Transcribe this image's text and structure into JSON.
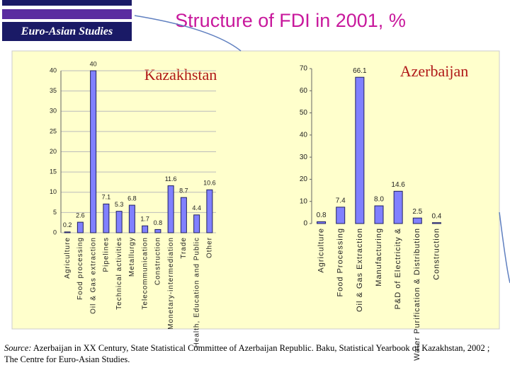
{
  "header": {
    "logo": "Euro-Asian Studies",
    "title": "Structure of FDI in 2001, %"
  },
  "chart_data": [
    {
      "type": "bar",
      "title": "Kazakhstan",
      "categories": [
        "Agriculture",
        "Food processing",
        "Oil & Gas extraction",
        "Pipelines",
        "Technical activities",
        "Metallurgy",
        "Telecommunication",
        "Construction",
        "Monetary-intermediation",
        "Trade",
        "Health, Education and Public",
        "Other"
      ],
      "values": [
        0.2,
        2.6,
        40,
        7.1,
        5.3,
        6.8,
        1.7,
        0.8,
        11.6,
        8.7,
        4.4,
        10.6
      ],
      "color": "#8080ff",
      "ylim": [
        0,
        40
      ],
      "yticks": [
        0,
        5,
        10,
        15,
        20,
        25,
        30,
        35,
        40
      ],
      "grid": true
    },
    {
      "type": "bar",
      "title": "Azerbaijan",
      "categories": [
        "Agriculture",
        "Food Processing",
        "Oil & Gas Extraction",
        "Manufacturing",
        "P&D of Electricity &",
        "Water Purification & Distribution",
        "Construction"
      ],
      "values": [
        0.8,
        7.4,
        66.1,
        8,
        14.6,
        2.5,
        0.4
      ],
      "value_labels": [
        "0.8",
        "7.4",
        "66.1",
        "8.0",
        "14.6",
        "2.5",
        "0.4"
      ],
      "color": "#8080ff",
      "ylim": [
        0,
        70
      ],
      "yticks": [
        0,
        10,
        20,
        30,
        40,
        50,
        60,
        70
      ],
      "grid": false
    }
  ],
  "source": {
    "label": "Source:",
    "text": "Azerbaijan in XX Century, State Statistical Committee of Azerbaijan Republic. Baku, Statistical Yearbook of Kazakhstan, 2002 ; The Centre for Euro-Asian Studies."
  }
}
